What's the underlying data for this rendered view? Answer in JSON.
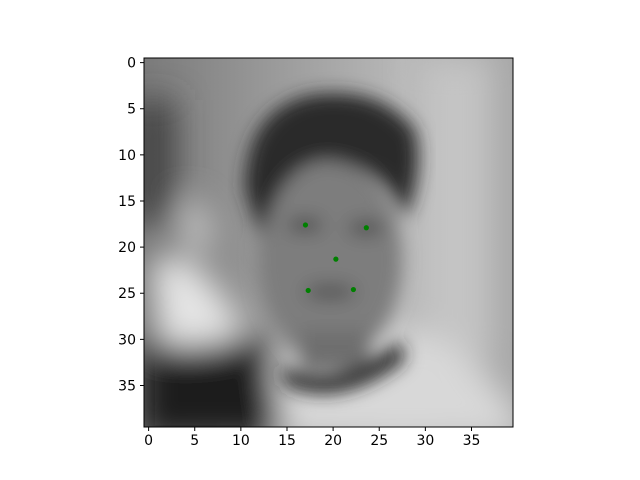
{
  "chart_data": {
    "type": "scatter",
    "title": "",
    "xlabel": "",
    "ylabel": "",
    "background": "grayscale face image",
    "xlim": [
      -0.5,
      39.5
    ],
    "ylim": [
      39.5,
      -0.5
    ],
    "y_inverted": true,
    "x_ticks": [
      0,
      5,
      10,
      15,
      20,
      25,
      30,
      35
    ],
    "y_ticks": [
      0,
      5,
      10,
      15,
      20,
      25,
      30,
      35
    ],
    "grid": false,
    "legend": "none",
    "series": [
      {
        "color": "#008000",
        "points": [
          {
            "x": 17.0,
            "y": 17.6
          },
          {
            "x": 23.6,
            "y": 17.9
          },
          {
            "x": 20.3,
            "y": 21.3
          },
          {
            "x": 17.3,
            "y": 24.7
          },
          {
            "x": 22.2,
            "y": 24.6
          }
        ]
      }
    ]
  }
}
